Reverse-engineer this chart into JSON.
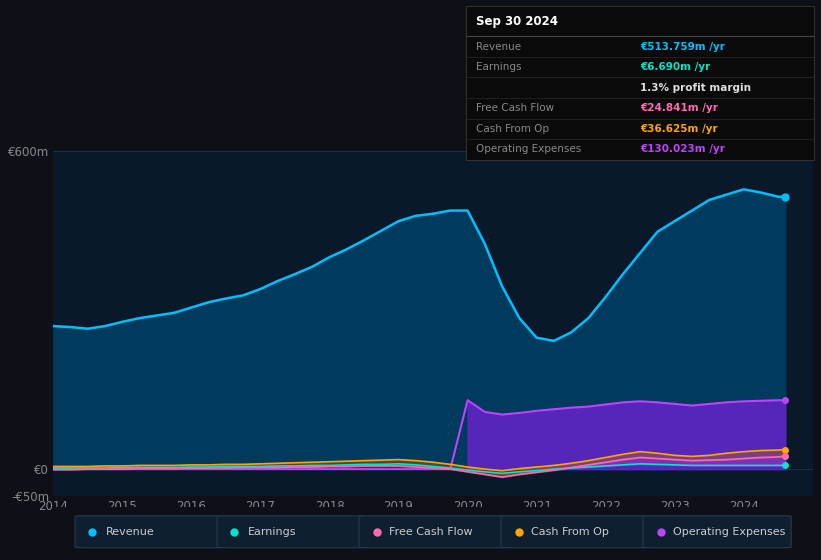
{
  "bg_color": "#0d1117",
  "plot_bg_color": "#0a1929",
  "years": [
    2014,
    2014.25,
    2014.5,
    2014.75,
    2015,
    2015.25,
    2015.5,
    2015.75,
    2016,
    2016.25,
    2016.5,
    2016.75,
    2017,
    2017.25,
    2017.5,
    2017.75,
    2018,
    2018.25,
    2018.5,
    2018.75,
    2019,
    2019.25,
    2019.5,
    2019.75,
    2020,
    2020.25,
    2020.5,
    2020.75,
    2021,
    2021.25,
    2021.5,
    2021.75,
    2022,
    2022.25,
    2022.5,
    2022.75,
    2023,
    2023.25,
    2023.5,
    2023.75,
    2024,
    2024.25,
    2024.5,
    2024.6
  ],
  "revenue": [
    270,
    268,
    265,
    270,
    278,
    285,
    290,
    295,
    305,
    315,
    322,
    328,
    340,
    355,
    368,
    382,
    400,
    415,
    432,
    450,
    468,
    478,
    482,
    488,
    488,
    425,
    345,
    285,
    248,
    242,
    258,
    285,
    325,
    368,
    408,
    448,
    468,
    488,
    508,
    518,
    528,
    522,
    514,
    514
  ],
  "earnings": [
    2,
    2,
    2,
    2,
    3,
    3,
    3,
    3,
    4,
    4,
    5,
    5,
    5,
    6,
    6,
    7,
    7,
    8,
    9,
    9,
    10,
    8,
    5,
    2,
    -2,
    -5,
    -8,
    -5,
    -3,
    0,
    2,
    4,
    6,
    8,
    10,
    9,
    8,
    7,
    7,
    7,
    7,
    7,
    7,
    7
  ],
  "free_cash_flow": [
    -1,
    -1,
    0,
    0,
    0,
    1,
    1,
    1,
    2,
    2,
    2,
    3,
    3,
    3,
    4,
    4,
    5,
    5,
    6,
    6,
    6,
    4,
    2,
    0,
    -5,
    -10,
    -15,
    -10,
    -6,
    -2,
    3,
    8,
    13,
    18,
    22,
    20,
    18,
    16,
    17,
    18,
    20,
    22,
    23,
    25
  ],
  "cash_from_op": [
    5,
    5,
    5,
    6,
    6,
    7,
    7,
    7,
    8,
    8,
    9,
    9,
    10,
    11,
    12,
    13,
    14,
    15,
    16,
    17,
    18,
    16,
    13,
    9,
    4,
    0,
    -3,
    1,
    4,
    7,
    11,
    16,
    22,
    28,
    33,
    30,
    26,
    24,
    26,
    30,
    33,
    35,
    36,
    37
  ],
  "operating_expenses": [
    0,
    0,
    0,
    0,
    0,
    0,
    0,
    0,
    0,
    0,
    0,
    0,
    0,
    0,
    0,
    0,
    0,
    0,
    0,
    0,
    0,
    0,
    0,
    0,
    130,
    108,
    103,
    106,
    110,
    113,
    116,
    118,
    122,
    126,
    128,
    126,
    123,
    120,
    123,
    126,
    128,
    129,
    130,
    130
  ],
  "ylim": [
    -50,
    600
  ],
  "xtick_years": [
    2014,
    2015,
    2016,
    2017,
    2018,
    2019,
    2020,
    2021,
    2022,
    2023,
    2024
  ],
  "revenue_color": "#00bfff",
  "earnings_color": "#00e5cc",
  "fcf_color": "#ff69b4",
  "cfo_color": "#ffa500",
  "opex_color": "#bb44ff",
  "opex_fill_color": "#6622cc",
  "revenue_fill_color": "#003a5c",
  "legend": [
    {
      "label": "Revenue",
      "color": "#00bfff"
    },
    {
      "label": "Earnings",
      "color": "#00e5cc"
    },
    {
      "label": "Free Cash Flow",
      "color": "#ff69b4"
    },
    {
      "label": "Cash From Op",
      "color": "#ffa500"
    },
    {
      "label": "Operating Expenses",
      "color": "#bb44ff"
    }
  ],
  "info_title": "Sep 30 2024",
  "info_rows": [
    {
      "label": "Revenue",
      "value": "€513.759m /yr",
      "label_color": "#888888",
      "value_color": "#00bfff"
    },
    {
      "label": "Earnings",
      "value": "€6.690m /yr",
      "label_color": "#888888",
      "value_color": "#00e5cc"
    },
    {
      "label": "",
      "value": "1.3% profit margin",
      "label_color": "#888888",
      "value_color": "#dddddd"
    },
    {
      "label": "Free Cash Flow",
      "value": "€24.841m /yr",
      "label_color": "#888888",
      "value_color": "#ff69b4"
    },
    {
      "label": "Cash From Op",
      "value": "€36.625m /yr",
      "label_color": "#888888",
      "value_color": "#ffa500"
    },
    {
      "label": "Operating Expenses",
      "value": "€130.023m /yr",
      "label_color": "#888888",
      "value_color": "#bb44ff"
    }
  ]
}
